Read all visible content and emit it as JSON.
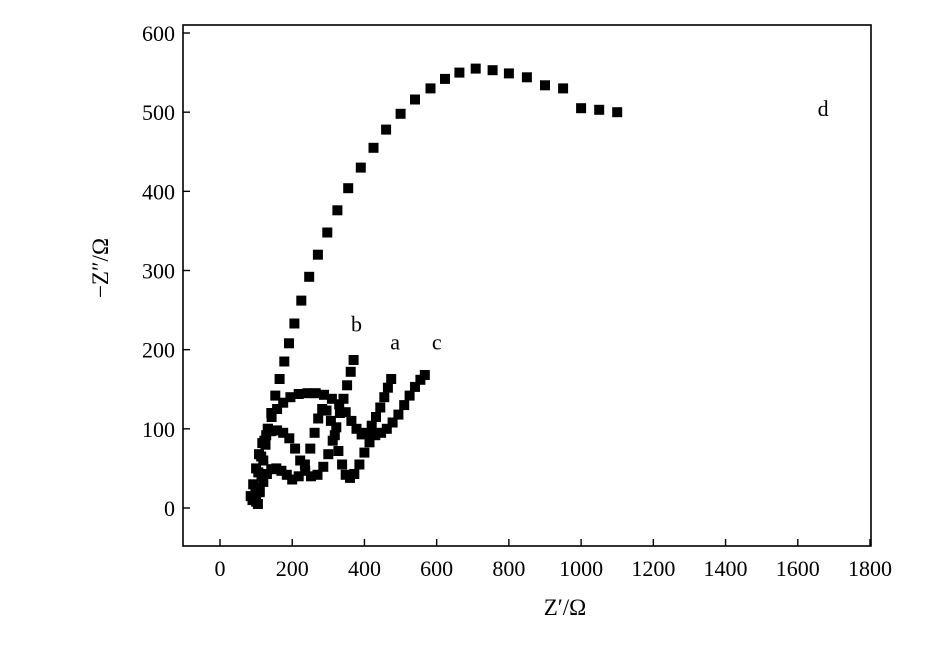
{
  "chart_data": {
    "type": "scatter",
    "xlabel": "Z′/Ω",
    "ylabel": "−Z″/Ω",
    "xlim": [
      -100,
      1800
    ],
    "ylim": [
      -50,
      610
    ],
    "x_ticks": [
      0,
      200,
      400,
      600,
      800,
      1000,
      1200,
      1400,
      1600,
      1800
    ],
    "y_ticks": [
      0,
      100,
      200,
      300,
      400,
      500,
      600
    ],
    "marker": "square",
    "color": "#000000",
    "series": [
      {
        "name": "a",
        "label_at": [
          485,
          200
        ],
        "points": [
          [
            90,
            10
          ],
          [
            98,
            25
          ],
          [
            106,
            45
          ],
          [
            114,
            65
          ],
          [
            123,
            85
          ],
          [
            132,
            100
          ],
          [
            143,
            115
          ],
          [
            158,
            125
          ],
          [
            175,
            133
          ],
          [
            195,
            140
          ],
          [
            218,
            144
          ],
          [
            242,
            145
          ],
          [
            265,
            145
          ],
          [
            288,
            143
          ],
          [
            310,
            138
          ],
          [
            330,
            131
          ],
          [
            348,
            121
          ],
          [
            364,
            110
          ],
          [
            378,
            100
          ],
          [
            392,
            93
          ],
          [
            406,
            95
          ],
          [
            420,
            104
          ],
          [
            432,
            115
          ],
          [
            444,
            127
          ],
          [
            455,
            140
          ],
          [
            465,
            152
          ],
          [
            474,
            163
          ]
        ]
      },
      {
        "name": "b",
        "label_at": [
          378,
          223
        ],
        "points": [
          [
            85,
            15
          ],
          [
            92,
            30
          ],
          [
            100,
            50
          ],
          [
            108,
            68
          ],
          [
            117,
            82
          ],
          [
            128,
            92
          ],
          [
            142,
            97
          ],
          [
            158,
            98
          ],
          [
            175,
            95
          ],
          [
            192,
            88
          ],
          [
            208,
            75
          ],
          [
            222,
            60
          ],
          [
            236,
            47
          ],
          [
            252,
            40
          ],
          [
            270,
            42
          ],
          [
            286,
            52
          ],
          [
            300,
            68
          ],
          [
            312,
            85
          ],
          [
            322,
            102
          ],
          [
            332,
            120
          ],
          [
            342,
            138
          ],
          [
            352,
            155
          ],
          [
            362,
            172
          ],
          [
            370,
            187
          ]
        ]
      },
      {
        "name": "c",
        "label_at": [
          600,
          200
        ],
        "points": [
          [
            100,
            8
          ],
          [
            110,
            20
          ],
          [
            120,
            33
          ],
          [
            130,
            43
          ],
          [
            142,
            49
          ],
          [
            156,
            50
          ],
          [
            170,
            47
          ],
          [
            185,
            42
          ],
          [
            200,
            36
          ],
          [
            218,
            40
          ],
          [
            235,
            55
          ],
          [
            250,
            75
          ],
          [
            262,
            95
          ],
          [
            272,
            113
          ],
          [
            283,
            125
          ],
          [
            295,
            123
          ],
          [
            307,
            110
          ],
          [
            318,
            92
          ],
          [
            328,
            72
          ],
          [
            338,
            55
          ],
          [
            348,
            42
          ],
          [
            360,
            38
          ],
          [
            372,
            43
          ],
          [
            386,
            55
          ],
          [
            400,
            70
          ],
          [
            414,
            83
          ],
          [
            430,
            92
          ],
          [
            446,
            95
          ],
          [
            462,
            100
          ],
          [
            478,
            108
          ],
          [
            494,
            118
          ],
          [
            510,
            130
          ],
          [
            525,
            142
          ],
          [
            540,
            153
          ],
          [
            555,
            162
          ],
          [
            567,
            168
          ]
        ]
      },
      {
        "name": "d",
        "label_at": [
          1670,
          495
        ],
        "points": [
          [
            105,
            5
          ],
          [
            110,
            22
          ],
          [
            115,
            40
          ],
          [
            120,
            60
          ],
          [
            126,
            80
          ],
          [
            133,
            100
          ],
          [
            142,
            120
          ],
          [
            153,
            142
          ],
          [
            165,
            163
          ],
          [
            178,
            185
          ],
          [
            191,
            208
          ],
          [
            206,
            233
          ],
          [
            225,
            262
          ],
          [
            247,
            292
          ],
          [
            271,
            320
          ],
          [
            297,
            348
          ],
          [
            325,
            376
          ],
          [
            355,
            404
          ],
          [
            390,
            430
          ],
          [
            425,
            455
          ],
          [
            460,
            478
          ],
          [
            500,
            498
          ],
          [
            540,
            516
          ],
          [
            583,
            530
          ],
          [
            623,
            542
          ],
          [
            663,
            550
          ],
          [
            708,
            555
          ],
          [
            755,
            553
          ],
          [
            800,
            549
          ],
          [
            850,
            544
          ],
          [
            900,
            534
          ],
          [
            950,
            530
          ],
          [
            1000,
            505
          ],
          [
            1050,
            503
          ],
          [
            1100,
            500
          ]
        ],
        "note": "x values of series d are read on the Z′ axis"
      }
    ]
  }
}
